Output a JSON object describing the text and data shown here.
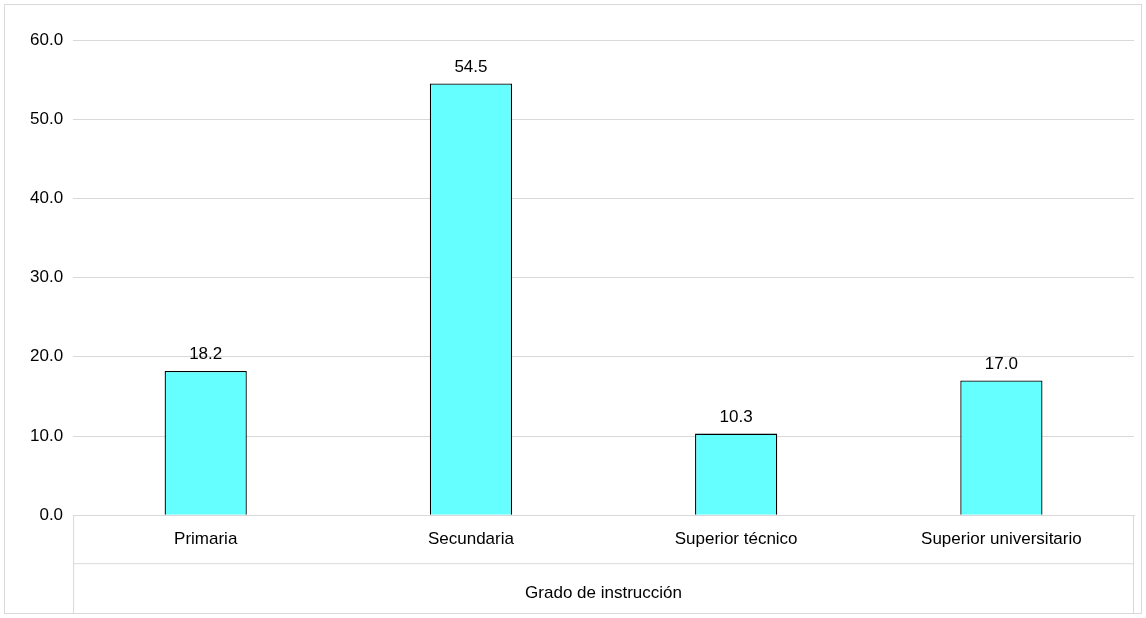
{
  "chart_data": {
    "type": "bar",
    "xlabel": "Grado de instrucción",
    "categories": [
      "Primaria",
      "Secundaria",
      "Superior técnico",
      "Superior universitario"
    ],
    "values": [
      18.2,
      54.5,
      10.3,
      17.0
    ],
    "value_labels": [
      "18.2",
      "54.5",
      "10.3",
      "17.0"
    ],
    "color": "#66ffff",
    "ylim": [
      0,
      60
    ],
    "yticks": [
      {
        "value": 0,
        "label": "0.0"
      },
      {
        "value": 10,
        "label": "10.0"
      },
      {
        "value": 20,
        "label": "20.0"
      },
      {
        "value": 30,
        "label": "30.0"
      },
      {
        "value": 40,
        "label": "40.0"
      },
      {
        "value": 50,
        "label": "50.0"
      },
      {
        "value": 60,
        "label": "60.0"
      }
    ],
    "grid": "y",
    "legend": false
  }
}
